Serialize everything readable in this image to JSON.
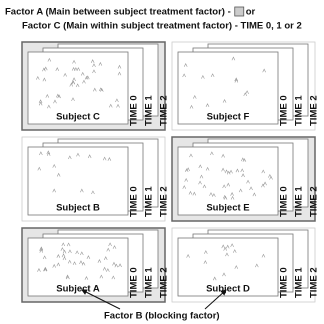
{
  "header": {
    "line1": "Factor A (Main between subject treatment factor) -",
    "line1_suffix": "or",
    "line2": "Factor C (Main within subject treatment factor) - TIME 0, 1 or 2"
  },
  "panels": [
    {
      "label": "Subject C",
      "times": [
        "TIME 0",
        "TIME 1",
        "TIME 2"
      ]
    },
    {
      "label": "Subject F",
      "times": [
        "TIME 0",
        "TIME 1",
        "TIME 2"
      ]
    },
    {
      "label": "Subject B",
      "times": [
        "TIME 0",
        "TIME 1",
        "TIME 2"
      ]
    },
    {
      "label": "Subject E",
      "times": [
        "TIME 0",
        "TIME 1",
        "TIME 2"
      ]
    },
    {
      "label": "Subject A",
      "times": [
        "TIME 0",
        "TIME 1",
        "TIME 2"
      ]
    },
    {
      "label": "Subject D",
      "times": [
        "TIME 0",
        "TIME 1",
        "TIME 2"
      ]
    }
  ],
  "footer": "Factor B (blocking factor)"
}
